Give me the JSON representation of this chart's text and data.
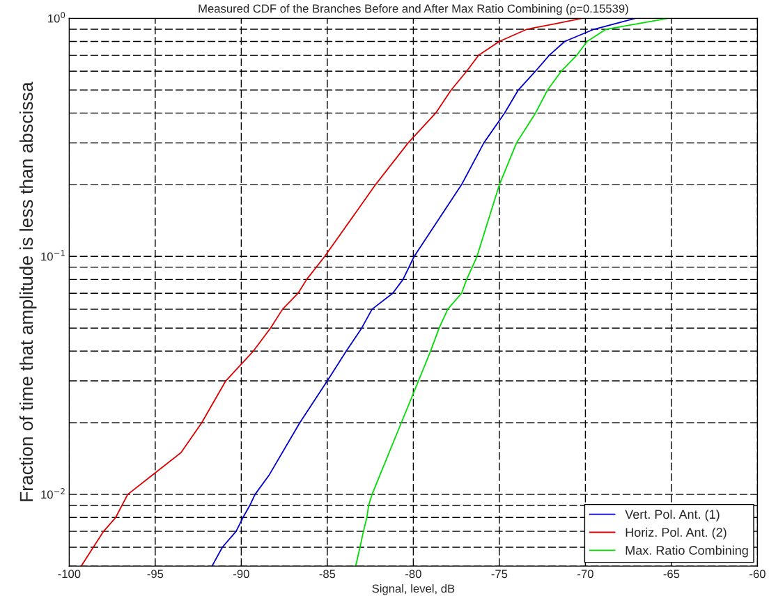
{
  "chart_data": {
    "type": "line",
    "title": "Measured CDF of the Branches Before and After Max Ratio Combining (ρ=0.15539)",
    "xlabel": "Signal, level, dB",
    "ylabel": "Fraction of time that amplitude is less than abscissa",
    "log": "y",
    "grid": true,
    "legend": "bottom right",
    "line_style": "solid",
    "xlim": [
      -100,
      -60
    ],
    "xticks": [
      -100,
      -95,
      -90,
      -85,
      -80,
      -75,
      -70,
      -65,
      -60
    ],
    "ylim": [
      0.005,
      1
    ],
    "yticks": [
      {
        "value": 0.005,
        "label": null
      },
      {
        "value": 0.006,
        "label": null
      },
      {
        "value": 0.007,
        "label": null
      },
      {
        "value": 0.008,
        "label": null
      },
      {
        "value": 0.009,
        "label": null
      },
      {
        "value": 0.01,
        "label": "10$^{−2}$"
      },
      {
        "value": 0.02,
        "label": null
      },
      {
        "value": 0.03,
        "label": null
      },
      {
        "value": 0.04,
        "label": null
      },
      {
        "value": 0.05,
        "label": null
      },
      {
        "value": 0.06,
        "label": null
      },
      {
        "value": 0.07,
        "label": null
      },
      {
        "value": 0.08,
        "label": null
      },
      {
        "value": 0.09,
        "label": null
      },
      {
        "value": 0.1,
        "label": "10$^{−1}$"
      },
      {
        "value": 0.2,
        "label": null
      },
      {
        "value": 0.3,
        "label": null
      },
      {
        "value": 0.4,
        "label": null
      },
      {
        "value": 0.5,
        "label": null
      },
      {
        "value": 0.6,
        "label": null
      },
      {
        "value": 0.7,
        "label": null
      },
      {
        "value": 0.8,
        "label": null
      },
      {
        "value": 0.9,
        "label": null
      },
      {
        "value": 1,
        "label": "10$^{0}$"
      }
    ],
    "series": [
      {
        "name": "Vert. Pol. Ant. (1)",
        "color": "#0000cc",
        "x": [
          -91.7,
          -91.1,
          -90.3,
          -89.9,
          -89.5,
          -89.2,
          -88.4,
          -86.6,
          -85.0,
          -83.9,
          -83.0,
          -82.4,
          -81.2,
          -80.6,
          -79.95,
          -77.2,
          -75.9,
          -74.7,
          -73.9,
          -72.9,
          -72.1,
          -71.2,
          -69.5,
          -67.1
        ],
        "values": [
          0.005,
          0.006,
          0.007,
          0.008,
          0.009,
          0.01,
          0.012,
          0.02,
          0.03,
          0.04,
          0.05,
          0.06,
          0.07,
          0.08,
          0.1,
          0.2,
          0.3,
          0.4,
          0.5,
          0.6,
          0.7,
          0.8,
          0.9,
          1.0
        ]
      },
      {
        "name": "Horiz. Pol. Ant. (2)",
        "color": "#dd0000",
        "x": [
          -99.3,
          -98.6,
          -98.0,
          -97.3,
          -96.6,
          -95.2,
          -93.5,
          -92.3,
          -90.9,
          -89.3,
          -88.3,
          -87.6,
          -86.7,
          -86.2,
          -85.15,
          -82.2,
          -80.3,
          -78.7,
          -77.8,
          -76.9,
          -76.2,
          -75.0,
          -73.4,
          -71.7,
          -70.2
        ],
        "values": [
          0.005,
          0.006,
          0.007,
          0.008,
          0.01,
          0.012,
          0.015,
          0.02,
          0.03,
          0.04,
          0.05,
          0.06,
          0.07,
          0.08,
          0.1,
          0.2,
          0.3,
          0.4,
          0.5,
          0.6,
          0.7,
          0.8,
          0.9,
          0.95,
          1.0
        ]
      },
      {
        "name": "Max. Ratio Combining",
        "color": "#00dd00",
        "x": [
          -83.35,
          -83.1,
          -82.9,
          -82.7,
          -82.6,
          -82.4,
          -80.7,
          -79.7,
          -79.0,
          -78.5,
          -78.0,
          -77.2,
          -76.9,
          -76.3,
          -75.0,
          -74.0,
          -72.9,
          -72.2,
          -71.4,
          -70.5,
          -69.9,
          -68.8,
          -65.2
        ],
        "values": [
          0.005,
          0.006,
          0.007,
          0.008,
          0.009,
          0.01,
          0.02,
          0.03,
          0.04,
          0.05,
          0.06,
          0.07,
          0.08,
          0.1,
          0.2,
          0.3,
          0.4,
          0.5,
          0.6,
          0.7,
          0.8,
          0.9,
          1.0
        ]
      }
    ]
  }
}
